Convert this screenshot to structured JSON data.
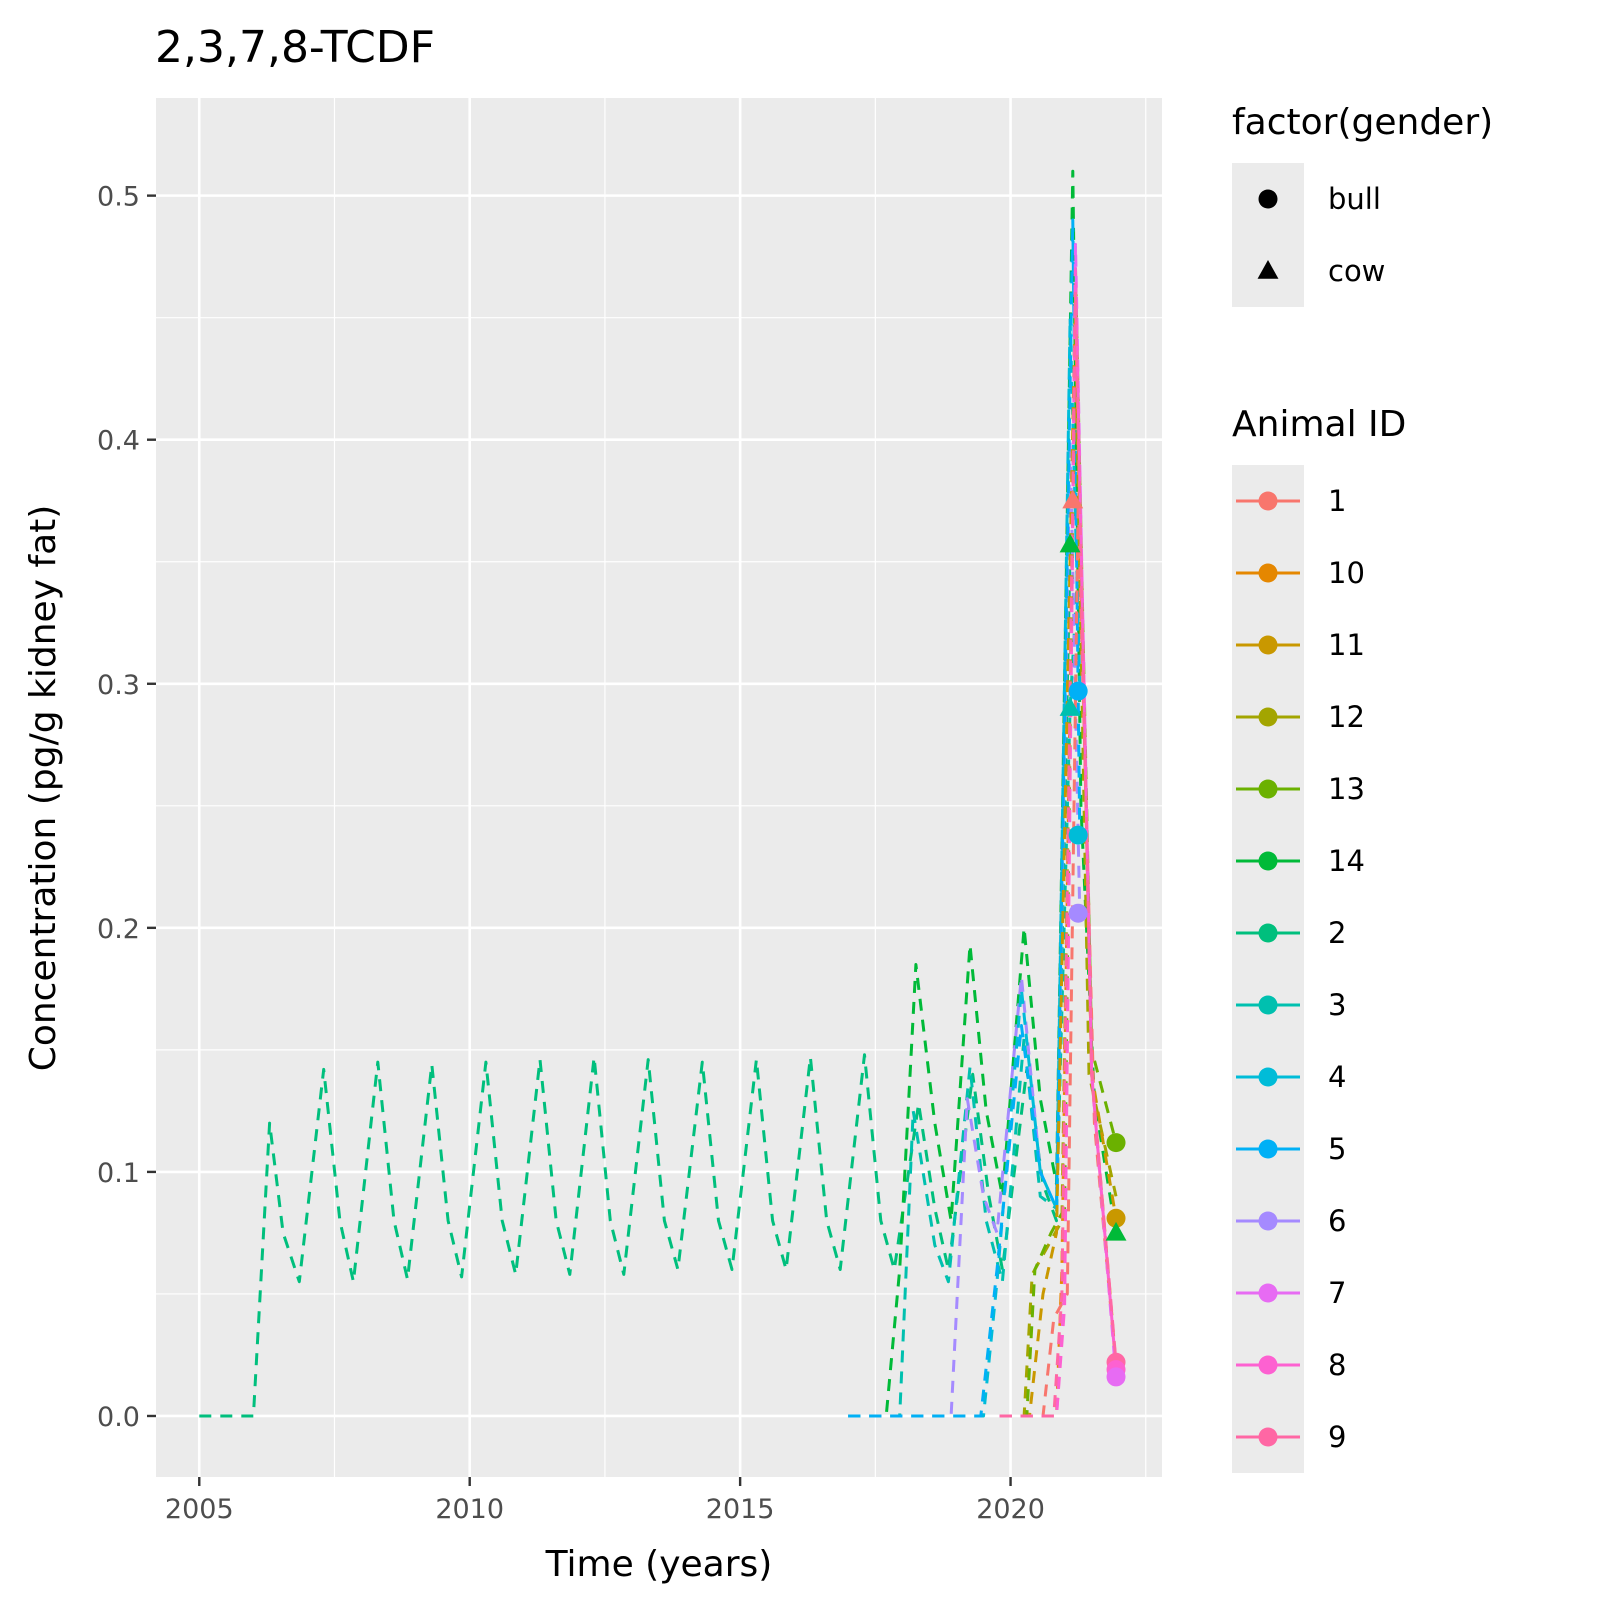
{
  "chart_data": {
    "type": "line",
    "title": "2,3,7,8-TCDF",
    "xlabel": "Time (years)",
    "ylabel": "Concentration (pg/g kidney fat)",
    "xlim": [
      2004.2,
      2022.8
    ],
    "ylim": [
      -0.025,
      0.54
    ],
    "x_ticks": [
      2005,
      2010,
      2015,
      2020
    ],
    "x_tick_labels": [
      "2005",
      "2010",
      "2015",
      "2020"
    ],
    "y_ticks": [
      0.0,
      0.1,
      0.2,
      0.3,
      0.4,
      0.5
    ],
    "y_tick_labels": [
      "0.0",
      "0.1",
      "0.2",
      "0.3",
      "0.4",
      "0.5"
    ],
    "grid": true,
    "panel_background": "#EBEBEB",
    "legend_position": "right",
    "legend_shape": {
      "title": "factor(gender)",
      "entries": [
        {
          "label": "bull",
          "shape": "circle"
        },
        {
          "label": "cow",
          "shape": "triangle"
        }
      ]
    },
    "legend_color": {
      "title": "Animal ID",
      "entries": [
        {
          "label": "1",
          "color": "#F8766D"
        },
        {
          "label": "10",
          "color": "#E58700"
        },
        {
          "label": "11",
          "color": "#C99800"
        },
        {
          "label": "12",
          "color": "#A3A500"
        },
        {
          "label": "13",
          "color": "#6BB100"
        },
        {
          "label": "14",
          "color": "#00BA38"
        },
        {
          "label": "2",
          "color": "#00BF7D"
        },
        {
          "label": "3",
          "color": "#00C0AF"
        },
        {
          "label": "4",
          "color": "#00BCD8"
        },
        {
          "label": "5",
          "color": "#00B0F6"
        },
        {
          "label": "6",
          "color": "#A58AFF"
        },
        {
          "label": "7",
          "color": "#E76BF3"
        },
        {
          "label": "8",
          "color": "#FD61D1"
        },
        {
          "label": "9",
          "color": "#FF67A4"
        }
      ]
    },
    "series": [
      {
        "name": "2",
        "color": "#00BF7D",
        "x": [
          2005.0,
          2006.0,
          2006.3,
          2006.55,
          2006.85,
          2007.3,
          2007.6,
          2007.85,
          2008.3,
          2008.6,
          2008.85,
          2009.3,
          2009.6,
          2009.85,
          2010.3,
          2010.6,
          2010.85,
          2011.3,
          2011.6,
          2011.85,
          2012.3,
          2012.6,
          2012.85,
          2013.3,
          2013.6,
          2013.85,
          2014.3,
          2014.6,
          2014.85,
          2015.3,
          2015.6,
          2015.85,
          2016.3,
          2016.6,
          2016.85,
          2017.3,
          2017.6,
          2017.85,
          2018.3,
          2018.6,
          2018.85,
          2019.3,
          2019.6,
          2019.85,
          2020.3,
          2020.6,
          2020.85,
          2021.1
        ],
        "y": [
          0.0,
          0.0,
          0.12,
          0.075,
          0.055,
          0.142,
          0.08,
          0.055,
          0.145,
          0.08,
          0.056,
          0.144,
          0.08,
          0.057,
          0.145,
          0.08,
          0.058,
          0.146,
          0.08,
          0.058,
          0.147,
          0.08,
          0.058,
          0.146,
          0.08,
          0.06,
          0.145,
          0.08,
          0.06,
          0.146,
          0.08,
          0.06,
          0.147,
          0.08,
          0.06,
          0.148,
          0.08,
          0.06,
          0.128,
          0.085,
          0.06,
          0.14,
          0.09,
          0.06,
          0.142,
          0.095,
          0.08,
          0.355
        ]
      },
      {
        "name": "14",
        "color": "#00BA38",
        "x": [
          2017.0,
          2017.7,
          2017.95,
          2018.25,
          2018.6,
          2018.9,
          2019.25,
          2019.55,
          2019.85,
          2020.25,
          2020.55,
          2020.85,
          2021.15,
          2021.3,
          2021.55,
          2021.95
        ],
        "y": [
          0.0,
          0.0,
          0.06,
          0.185,
          0.12,
          0.08,
          0.193,
          0.125,
          0.09,
          0.2,
          0.13,
          0.095,
          0.51,
          0.25,
          0.13,
          0.075
        ]
      },
      {
        "name": "3",
        "color": "#00C0AF",
        "x": [
          2017.0,
          2017.95,
          2018.2,
          2018.6,
          2018.85,
          2019.25,
          2019.55,
          2019.85,
          2020.25,
          2020.55,
          2020.85,
          2021.1,
          2021.25
        ],
        "y": [
          0.0,
          0.0,
          0.125,
          0.07,
          0.055,
          0.143,
          0.08,
          0.055,
          0.155,
          0.09,
          0.085,
          0.29,
          0.35
        ]
      },
      {
        "name": "6",
        "color": "#A58AFF",
        "x": [
          2017.0,
          2018.9,
          2019.2,
          2019.5,
          2019.75,
          2020.2,
          2020.55,
          2020.85,
          2021.1,
          2021.28
        ],
        "y": [
          0.0,
          0.0,
          0.13,
          0.09,
          0.075,
          0.18,
          0.1,
          0.085,
          0.4,
          0.205
        ]
      },
      {
        "name": "4",
        "color": "#00BCD8",
        "x": [
          2017.0,
          2019.5,
          2019.75,
          2020.2,
          2020.55,
          2020.85,
          2021.1,
          2021.28
        ],
        "y": [
          0.0,
          0.0,
          0.055,
          0.175,
          0.1,
          0.085,
          0.45,
          0.3
        ]
      },
      {
        "name": "5",
        "color": "#00B0F6",
        "x": [
          2017.0,
          2019.45,
          2019.75,
          2020.2,
          2020.55,
          2020.85,
          2021.15,
          2021.28
        ],
        "y": [
          0.0,
          0.0,
          0.06,
          0.16,
          0.1,
          0.085,
          0.49,
          0.237
        ]
      },
      {
        "name": "12",
        "color": "#A3A500",
        "x": [
          2019.8,
          2020.25,
          2020.4,
          2020.7,
          2020.95,
          2021.2,
          2021.45,
          2021.95
        ],
        "y": [
          0.0,
          0.0,
          0.058,
          0.07,
          0.08,
          0.44,
          0.14,
          0.09
        ]
      },
      {
        "name": "13",
        "color": "#6BB100",
        "x": [
          2019.8,
          2020.3,
          2020.45,
          2020.75,
          2021.0,
          2021.2,
          2021.5,
          2021.95
        ],
        "y": [
          0.0,
          0.0,
          0.06,
          0.075,
          0.085,
          0.47,
          0.15,
          0.112
        ]
      },
      {
        "name": "11",
        "color": "#C99800",
        "x": [
          2019.8,
          2020.35,
          2020.6,
          2020.85,
          2021.2,
          2021.5,
          2021.95
        ],
        "y": [
          0.0,
          0.0,
          0.05,
          0.075,
          0.46,
          0.14,
          0.081
        ]
      },
      {
        "name": "10",
        "color": "#E58700",
        "x": [
          2019.8,
          2020.85,
          2020.95,
          2021.2,
          2021.5,
          2021.95
        ],
        "y": [
          0.0,
          0.0,
          0.06,
          0.45,
          0.14,
          0.021
        ]
      },
      {
        "name": "1",
        "color": "#F8766D",
        "x": [
          2019.8,
          2020.6,
          2020.8,
          2021.05,
          2021.25,
          2021.55,
          2021.95
        ],
        "y": [
          0.0,
          0.0,
          0.04,
          0.05,
          0.375,
          0.12,
          0.02
        ]
      },
      {
        "name": "7",
        "color": "#E76BF3",
        "x": [
          2019.8,
          2020.85,
          2021.0,
          2021.2,
          2021.5,
          2021.95
        ],
        "y": [
          0.0,
          0.0,
          0.05,
          0.48,
          0.14,
          0.016
        ]
      },
      {
        "name": "8",
        "color": "#FD61D1",
        "x": [
          2019.8,
          2020.85,
          2021.0,
          2021.2,
          2021.5,
          2021.95
        ],
        "y": [
          0.0,
          0.0,
          0.045,
          0.47,
          0.14,
          0.019
        ]
      },
      {
        "name": "9",
        "color": "#FF67A4",
        "x": [
          2019.8,
          2020.8,
          2020.95,
          2021.2,
          2021.5,
          2021.95
        ],
        "y": [
          0.0,
          0.0,
          0.05,
          0.46,
          0.14,
          0.022
        ]
      }
    ],
    "points": [
      {
        "id": "1",
        "shape": "triangle",
        "x": 2021.15,
        "y": 0.375
      },
      {
        "id": "14",
        "shape": "triangle",
        "x": 2021.1,
        "y": 0.357
      },
      {
        "id": "3",
        "shape": "triangle",
        "x": 2021.1,
        "y": 0.29
      },
      {
        "id": "5",
        "shape": "circle",
        "x": 2021.25,
        "y": 0.297
      },
      {
        "id": "4",
        "shape": "circle",
        "x": 2021.25,
        "y": 0.238
      },
      {
        "id": "6",
        "shape": "circle",
        "x": 2021.25,
        "y": 0.206
      },
      {
        "id": "13",
        "shape": "circle",
        "x": 2021.95,
        "y": 0.112
      },
      {
        "id": "11",
        "shape": "circle",
        "x": 2021.95,
        "y": 0.081
      },
      {
        "id": "14",
        "shape": "triangle",
        "x": 2021.95,
        "y": 0.075
      },
      {
        "id": "9",
        "shape": "circle",
        "x": 2021.95,
        "y": 0.022
      },
      {
        "id": "8",
        "shape": "circle",
        "x": 2021.95,
        "y": 0.019
      },
      {
        "id": "7",
        "shape": "circle",
        "x": 2021.95,
        "y": 0.016
      }
    ]
  }
}
